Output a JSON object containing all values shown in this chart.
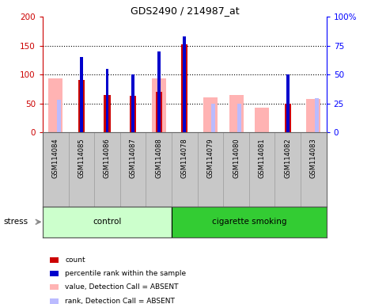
{
  "title": "GDS2490 / 214987_at",
  "samples": [
    "GSM114084",
    "GSM114085",
    "GSM114086",
    "GSM114087",
    "GSM114088",
    "GSM114078",
    "GSM114079",
    "GSM114080",
    "GSM114081",
    "GSM114082",
    "GSM114083"
  ],
  "n_control": 5,
  "n_smoking": 6,
  "count": [
    null,
    90,
    65,
    63,
    70,
    152,
    null,
    null,
    null,
    50,
    null
  ],
  "percentile_rank": [
    null,
    65,
    55,
    50,
    70,
    83,
    null,
    null,
    null,
    50,
    null
  ],
  "value_absent": [
    93,
    null,
    null,
    null,
    93,
    null,
    61,
    64,
    43,
    null,
    58
  ],
  "rank_absent": [
    56,
    null,
    null,
    null,
    null,
    null,
    49,
    49,
    null,
    null,
    59
  ],
  "ylim_left": [
    0,
    200
  ],
  "ylim_right": [
    0,
    100
  ],
  "yticks_left": [
    0,
    50,
    100,
    150,
    200
  ],
  "yticks_right": [
    0,
    25,
    50,
    75,
    100
  ],
  "yticklabels_right": [
    "0",
    "25",
    "50",
    "75",
    "100%"
  ],
  "bar_color_count": "#cc0000",
  "bar_color_rank": "#0000cc",
  "bar_color_value_absent": "#ffb3b3",
  "bar_color_rank_absent": "#bbbbff",
  "color_control_bg": "#ccffcc",
  "color_smoking_bg": "#33cc33",
  "color_xlabels_bg": "#c8c8c8",
  "stress_label": "stress",
  "control_label": "control",
  "smoking_label": "cigarette smoking",
  "legend_items": [
    {
      "color": "#cc0000",
      "label": "count"
    },
    {
      "color": "#0000cc",
      "label": "percentile rank within the sample"
    },
    {
      "color": "#ffb3b3",
      "label": "value, Detection Call = ABSENT"
    },
    {
      "color": "#bbbbff",
      "label": "rank, Detection Call = ABSENT"
    }
  ]
}
